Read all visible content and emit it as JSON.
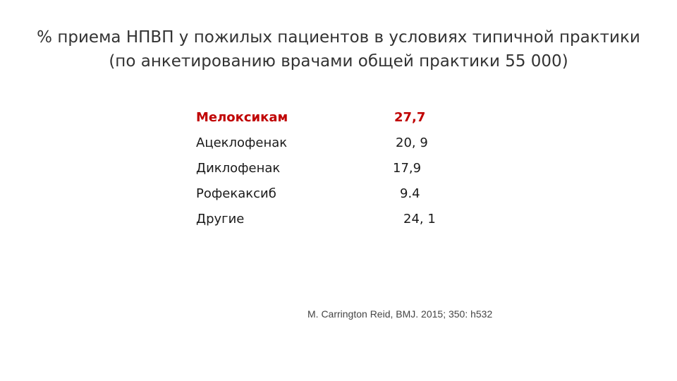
{
  "title": {
    "line1": "% приема НПВП у пожилых пациентов в условиях типичной практики",
    "line2": "(по анкетированию врачами общей практики 55 000)"
  },
  "drugs": [
    {
      "name": "Мелоксикам",
      "value": "27,7",
      "highlight": true
    },
    {
      "name": "Ацеклофенак",
      "value": "20, 9",
      "highlight": false
    },
    {
      "name": "Диклофенак",
      "value": "17,9",
      "highlight": false
    },
    {
      "name": "Рофекаксиб",
      "value": "9.4",
      "highlight": false
    },
    {
      "name": "Другие",
      "value": "24, 1",
      "highlight": false
    }
  ],
  "citation": "M. Carrington Reid, BMJ. 2015; 350: h532",
  "colors": {
    "highlight": "#c00000",
    "text": "#1a1a1a",
    "title": "#333333"
  }
}
